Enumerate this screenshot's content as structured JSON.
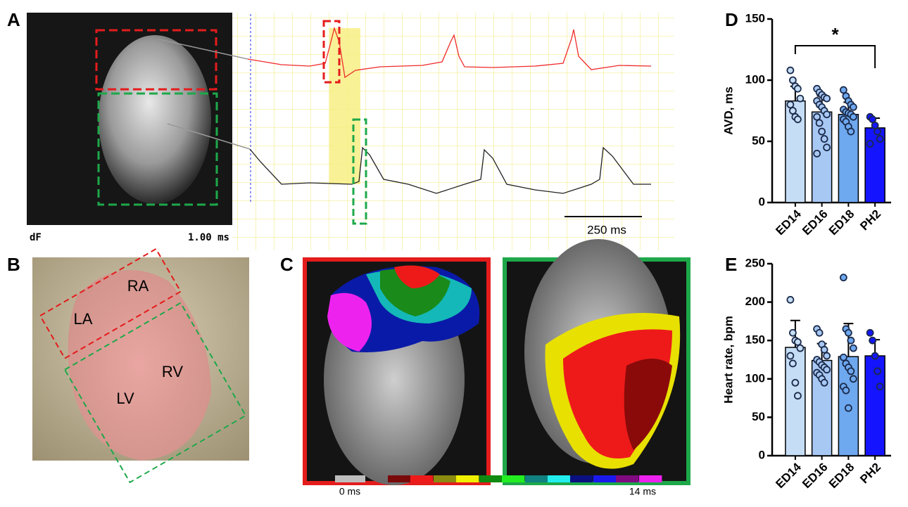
{
  "panel_labels": [
    "A",
    "B",
    "C",
    "D",
    "E"
  ],
  "panel_a": {
    "overlay_left": "dF",
    "overlay_right": "1.00 ms",
    "scale_bar": "250 ms"
  },
  "panel_b": {
    "labels": [
      "RA",
      "LA",
      "RV",
      "LV"
    ]
  },
  "panel_c": {
    "scale_min": "0 ms",
    "scale_max": "14 ms"
  },
  "chart_data": [
    {
      "type": "bar",
      "y_label": "AVD, ms",
      "annotation": "*",
      "categories": [
        "ED14",
        "ED16",
        "ED18",
        "PH2"
      ],
      "values": [
        83,
        74,
        72,
        61
      ],
      "errors": [
        12,
        13,
        10,
        8
      ],
      "colors": [
        "#c6ddf6",
        "#a8c8f4",
        "#6ea8ef",
        "#1414ff"
      ],
      "points": [
        [
          108,
          100,
          95,
          93,
          85,
          80,
          75,
          70,
          68
        ],
        [
          93,
          90,
          88,
          86,
          85,
          83,
          80,
          78,
          75,
          72,
          70,
          65,
          58,
          52,
          45,
          40
        ],
        [
          92,
          87,
          83,
          80,
          78,
          76,
          74,
          73,
          72,
          70,
          68,
          66,
          62,
          58
        ],
        [
          70,
          68,
          63,
          58,
          52,
          48
        ]
      ],
      "ylim": [
        0,
        150
      ],
      "yticks": [
        0,
        50,
        100,
        150
      ]
    },
    {
      "type": "bar",
      "y_label": "Heart rate, bpm",
      "categories": [
        "ED14",
        "ED16",
        "ED18",
        "PH2"
      ],
      "values": [
        141,
        124,
        129,
        130
      ],
      "errors": [
        35,
        22,
        43,
        21
      ],
      "colors": [
        "#c6ddf6",
        "#a8c8f4",
        "#6ea8ef",
        "#1414ff"
      ],
      "points": [
        [
          203,
          160,
          150,
          148,
          140,
          130,
          120,
          95,
          78
        ],
        [
          165,
          160,
          145,
          138,
          130,
          125,
          122,
          118,
          115,
          112,
          108,
          105,
          100,
          95
        ],
        [
          232,
          165,
          160,
          150,
          140,
          128,
          120,
          115,
          110,
          100,
          90,
          85,
          62
        ],
        [
          160,
          150,
          130,
          110,
          90
        ]
      ],
      "ylim": [
        0,
        250
      ],
      "yticks": [
        0,
        50,
        100,
        150,
        200,
        250
      ]
    }
  ]
}
